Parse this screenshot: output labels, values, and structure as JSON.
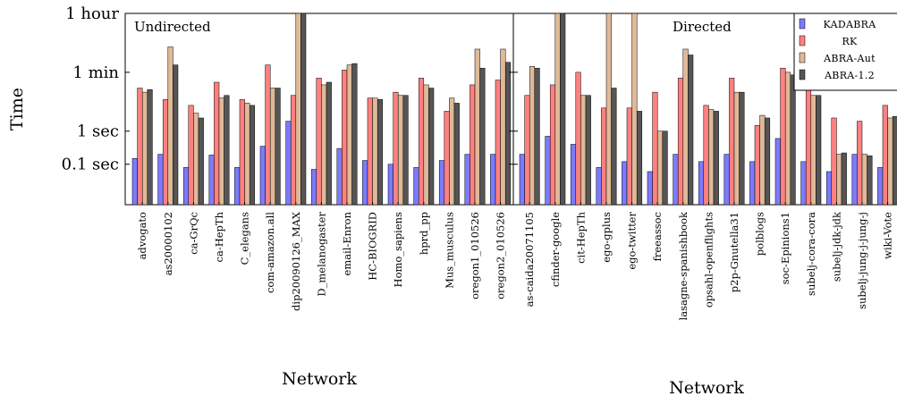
{
  "chart_data": {
    "type": "bar",
    "ylabel": "Time",
    "yscale": "log",
    "yunit": "seconds",
    "ylim": [
      0.006,
      3600
    ],
    "yticks": [
      {
        "value": 3600,
        "label": "1 hour"
      },
      {
        "value": 60,
        "label": "1 min"
      },
      {
        "value": 1,
        "label": "1 sec"
      },
      {
        "value": 0.1,
        "label": "0.1 sec"
      }
    ],
    "legend_position": "top-right",
    "series_meta": [
      {
        "name": "KADABRA",
        "color": "#7b7bff"
      },
      {
        "name": "RK",
        "color": "#ff8080"
      },
      {
        "name": "ABRA-Aut",
        "color": "#dfb998"
      },
      {
        "name": "ABRA-1.2",
        "color": "#555555"
      }
    ],
    "panels": [
      {
        "label": "Undirected",
        "xlabel": "Network",
        "categories": [
          "advogato",
          "as20000102",
          "ca-GrQc",
          "ca-HepTh",
          "C_elegans",
          "com-amazon.all",
          "dip20090126_MAX",
          "D_melanogaster",
          "email-Enron",
          "HC-BIOGRID",
          "Homo_sapiens",
          "hprd_pp",
          "Mus_musculus",
          "oregon1_010526",
          "oregon2_010526"
        ],
        "series": [
          {
            "name": "KADABRA",
            "values": [
              0.15,
              0.2,
              0.08,
              0.19,
              0.08,
              0.35,
              2.0,
              0.07,
              0.3,
              0.13,
              0.1,
              0.08,
              0.13,
              0.2,
              0.2
            ]
          },
          {
            "name": "RK",
            "values": [
              20,
              9,
              6,
              30,
              9,
              100,
              12,
              40,
              70,
              10,
              15,
              40,
              4,
              25,
              35
            ]
          },
          {
            "name": "ABRA-Aut",
            "values": [
              15,
              350,
              3.5,
              10,
              7,
              20,
              3600,
              25,
              100,
              10,
              12,
              25,
              10,
              300,
              300
            ]
          },
          {
            "name": "ABRA-1.2",
            "values": [
              18,
              100,
              2.5,
              12,
              6,
              20,
              3600,
              30,
              110,
              9,
              12,
              20,
              7,
              80,
              120
            ]
          }
        ]
      },
      {
        "label": "Directed",
        "xlabel": "Network",
        "categories": [
          "as-caida20071105",
          "cfinder-google",
          "cit-HepTh",
          "ego-gplus",
          "ego-twitter",
          "freeassoc",
          "lasagne-spanishbook",
          "opsahl-openflights",
          "p2p-Gnutella31",
          "polblogs",
          "soc-Epinions1",
          "subelj-cora-cora",
          "subelj-jdk-jdk",
          "subelj-jung-j-jung-j",
          "wiki-Vote"
        ],
        "series": [
          {
            "name": "KADABRA",
            "values": [
              0.2,
              0.7,
              0.4,
              0.08,
              0.12,
              0.06,
              0.2,
              0.12,
              0.2,
              0.12,
              0.6,
              0.12,
              0.06,
              0.2,
              0.08
            ]
          },
          {
            "name": "RK",
            "values": [
              12,
              25,
              60,
              5,
              5,
              15,
              40,
              6,
              40,
              1.5,
              80,
              50,
              2.5,
              2,
              6
            ]
          },
          {
            "name": "ABRA-Aut",
            "values": [
              90,
              3600,
              12,
              3600,
              3600,
              1.0,
              300,
              4.5,
              15,
              3,
              60,
              12,
              0.2,
              0.2,
              2.5
            ]
          },
          {
            "name": "ABRA-1.2",
            "values": [
              80,
              3600,
              12,
              20,
              4,
              1.0,
              200,
              4,
              15,
              2.5,
              50,
              12,
              0.22,
              0.18,
              2.8
            ]
          }
        ]
      }
    ]
  }
}
